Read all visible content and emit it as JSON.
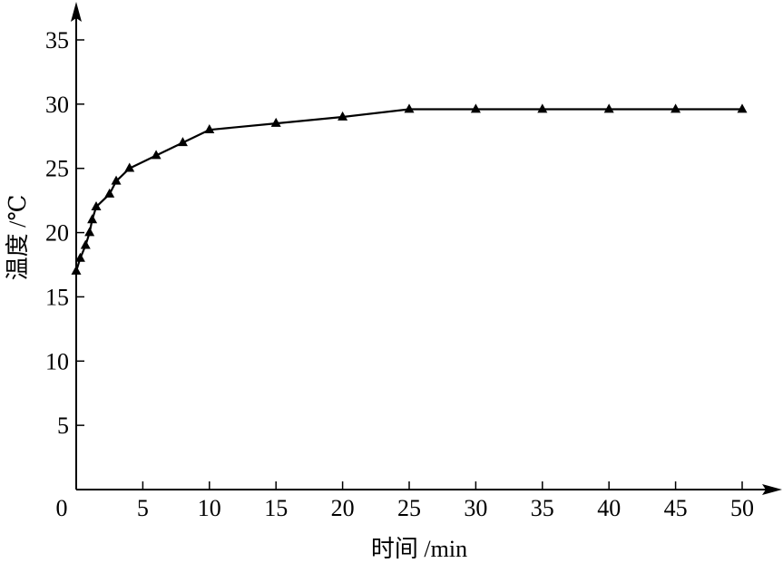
{
  "chart_data": {
    "type": "line",
    "title": "",
    "xlabel": "时间 /min",
    "ylabel": "温度 /℃",
    "xlim": [
      0,
      50
    ],
    "ylim": [
      0,
      35
    ],
    "x_ticks": [
      0,
      5,
      10,
      15,
      20,
      25,
      30,
      35,
      40,
      45,
      50
    ],
    "y_ticks": [
      5,
      10,
      15,
      20,
      25,
      30,
      35
    ],
    "grid": false,
    "marker": "triangle",
    "series": [
      {
        "x": [
          0,
          0.3,
          0.7,
          1.0,
          1.2,
          1.5,
          2.5,
          3.0,
          4.0,
          6.0,
          8.0,
          10,
          15,
          20,
          25,
          30,
          35,
          40,
          45,
          50
        ],
        "y": [
          17,
          18,
          19,
          20,
          21,
          22,
          23,
          24,
          25,
          26,
          27,
          28,
          28.5,
          29,
          29.6,
          29.6,
          29.6,
          29.6,
          29.6,
          29.6
        ]
      }
    ]
  }
}
